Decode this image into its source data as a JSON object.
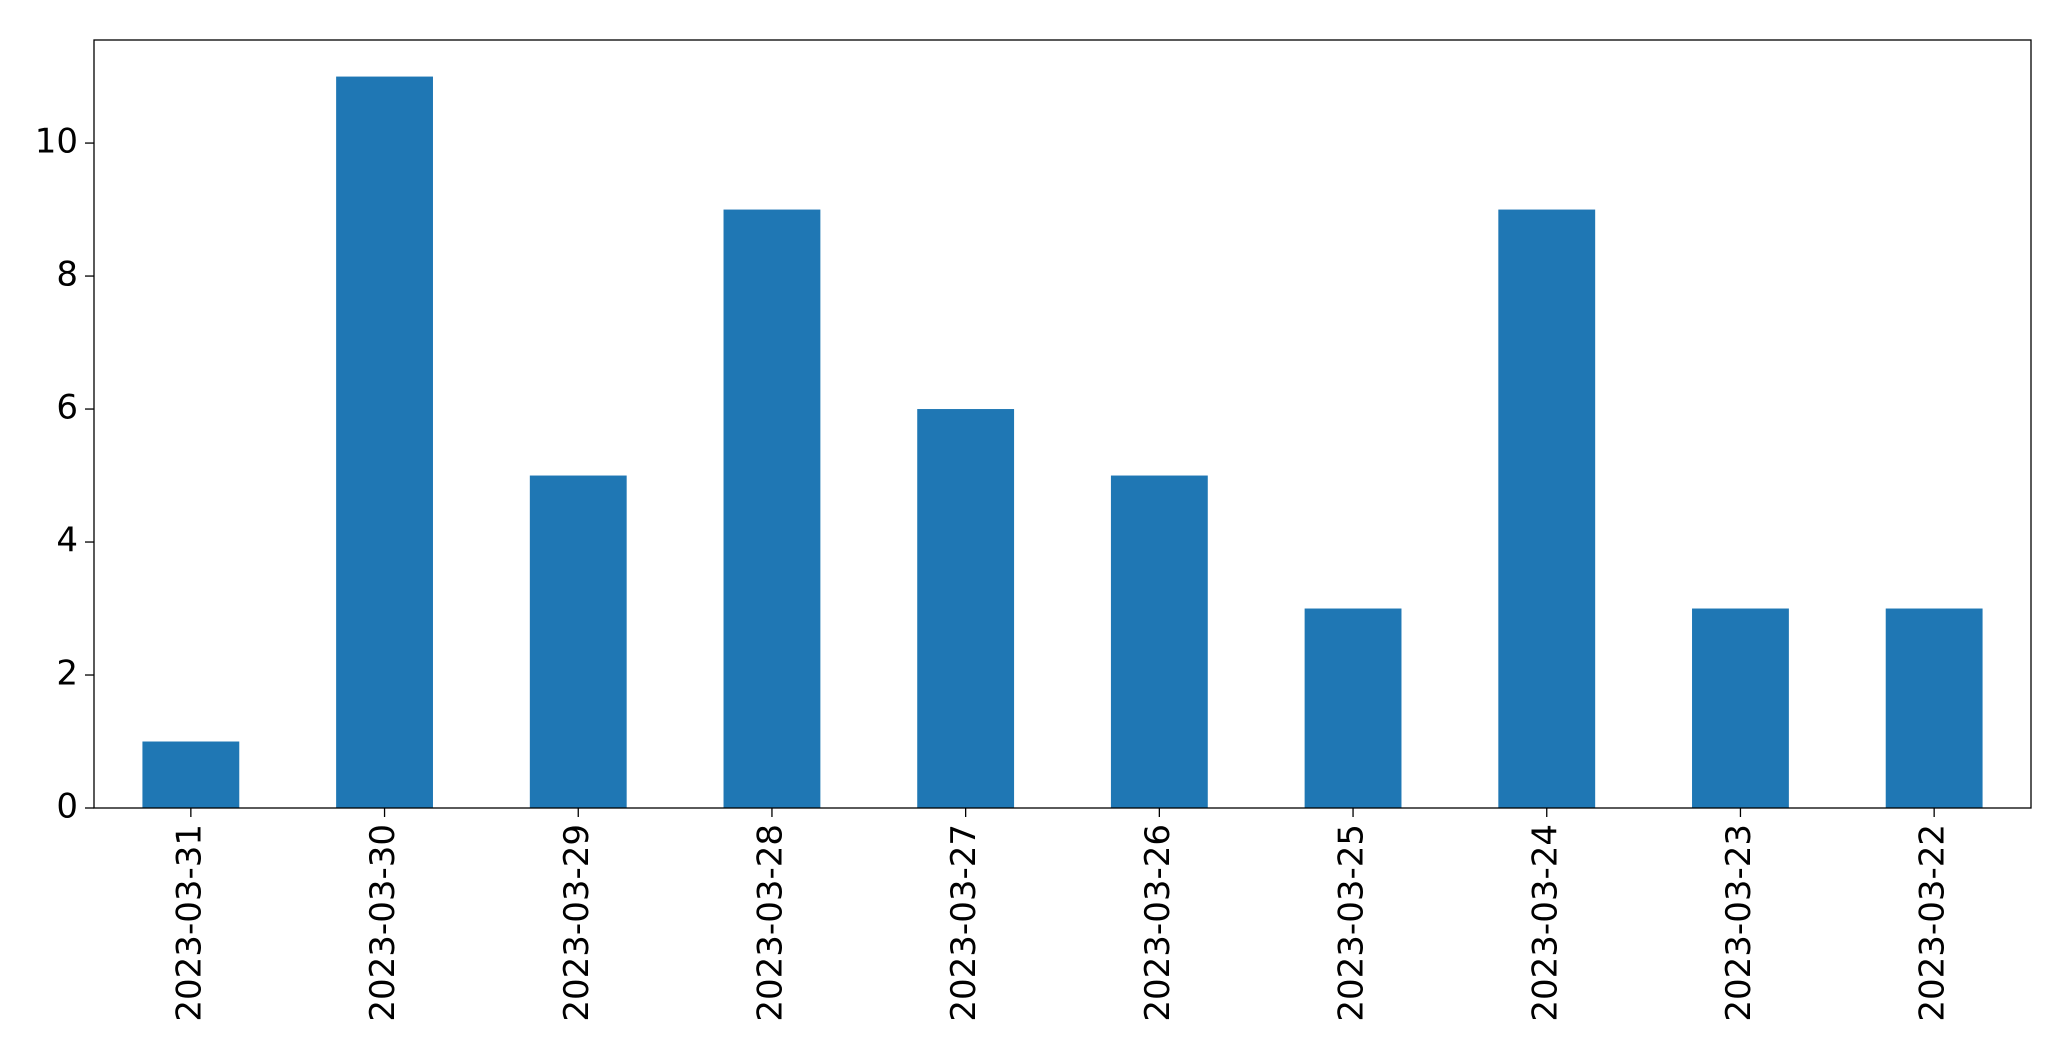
{
  "chart_data": {
    "type": "bar",
    "categories": [
      "2023-03-31",
      "2023-03-30",
      "2023-03-29",
      "2023-03-28",
      "2023-03-27",
      "2023-03-26",
      "2023-03-25",
      "2023-03-24",
      "2023-03-23",
      "2023-03-22"
    ],
    "values": [
      1,
      11,
      5,
      9,
      6,
      5,
      3,
      9,
      3,
      3
    ],
    "color": "#1f77b4",
    "ylim": [
      0,
      11.55
    ],
    "yticks": [
      0,
      2,
      4,
      6,
      8,
      10
    ],
    "grid": false
  }
}
